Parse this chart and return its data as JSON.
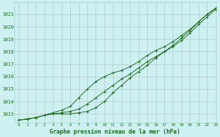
{
  "title": "Graphe pression niveau de la mer (hPa)",
  "background_color": "#cdf0f0",
  "grid_color": "#b0c8c8",
  "line_color": "#1a6b1a",
  "xlim": [
    -0.5,
    23
  ],
  "ylim": [
    1012.3,
    1022.0
  ],
  "yticks": [
    1013,
    1014,
    1015,
    1016,
    1017,
    1018,
    1019,
    1020,
    1021
  ],
  "xticks": [
    0,
    1,
    2,
    3,
    4,
    5,
    6,
    7,
    8,
    9,
    10,
    11,
    12,
    13,
    14,
    15,
    16,
    17,
    18,
    19,
    20,
    21,
    22,
    23
  ],
  "series1": [
    1012.5,
    1012.6,
    1012.7,
    1012.9,
    1013.0,
    1013.1,
    1013.2,
    1013.4,
    1013.8,
    1014.3,
    1014.8,
    1015.3,
    1015.8,
    1016.2,
    1016.7,
    1017.2,
    1017.6,
    1018.0,
    1018.4,
    1018.9,
    1019.5,
    1020.2,
    1020.8,
    1021.4
  ],
  "series2": [
    1012.5,
    1012.6,
    1012.7,
    1012.9,
    1013.1,
    1013.3,
    1013.6,
    1014.3,
    1015.0,
    1015.6,
    1016.0,
    1016.3,
    1016.5,
    1016.8,
    1017.2,
    1017.7,
    1018.1,
    1018.4,
    1018.8,
    1019.3,
    1019.8,
    1020.4,
    1021.0,
    1021.5
  ],
  "series3": [
    1012.5,
    1012.6,
    1012.7,
    1012.9,
    1013.0,
    1013.0,
    1013.0,
    1013.1,
    1013.2,
    1013.5,
    1014.0,
    1014.7,
    1015.3,
    1015.9,
    1016.4,
    1016.9,
    1017.5,
    1018.0,
    1018.5,
    1019.1,
    1019.7,
    1020.4,
    1021.0,
    1021.5
  ]
}
